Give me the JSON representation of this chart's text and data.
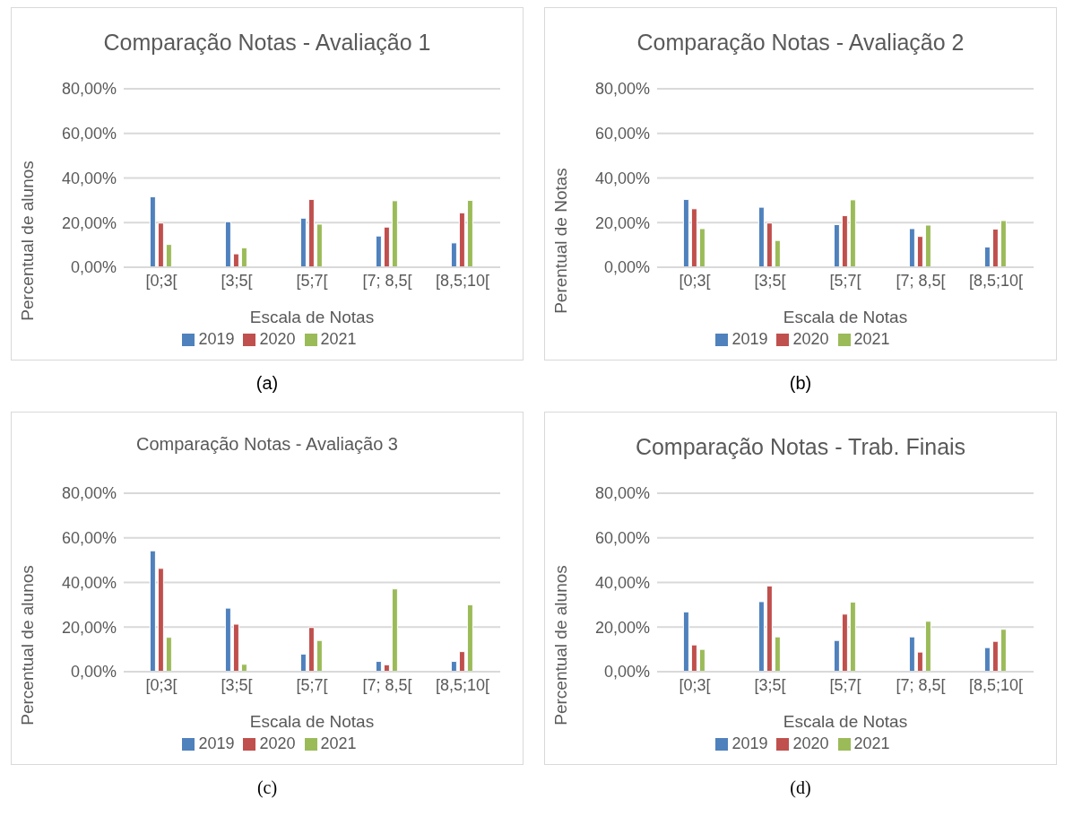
{
  "chart_data": [
    {
      "type": "bar",
      "title": "Comparação Notas - Avaliação 1",
      "xlabel": "Escala de Notas",
      "ylabel": "Percentual de alunos",
      "categories": [
        "[0;3[",
        "[3;5[",
        "[5;7[",
        "[7; 8,5[",
        "[8,5;10["
      ],
      "series": [
        {
          "name": "2019",
          "color": "#4f81bd",
          "values": [
            31.6,
            20.4,
            22,
            14,
            10.9
          ]
        },
        {
          "name": "2020",
          "color": "#c0504d",
          "values": [
            19.8,
            6,
            30.4,
            18,
            24.4
          ]
        },
        {
          "name": "2021",
          "color": "#9bbb59",
          "values": [
            10.2,
            8.7,
            19.3,
            29.8,
            30
          ]
        }
      ],
      "ylim": [
        0,
        80
      ],
      "yticks": [
        {
          "value": 0,
          "label": "0,00%"
        },
        {
          "value": 20,
          "label": "20,00%"
        },
        {
          "value": 40,
          "label": "40,00%"
        },
        {
          "value": 60,
          "label": "60,00%"
        },
        {
          "value": 80,
          "label": "80,00%"
        }
      ],
      "grid": "y",
      "legend": "bottom",
      "annotations": [
        "(a)"
      ]
    },
    {
      "type": "bar",
      "title": "Comparação Notas - Avaliação 2",
      "xlabel": "Escala de Notas",
      "ylabel": "Perentual de Notas",
      "categories": [
        "[0;3[",
        "[3;5[",
        "[5;7[",
        "[7; 8,5[",
        "[8,5;10["
      ],
      "series": [
        {
          "name": "2019",
          "color": "#4f81bd",
          "values": [
            30.4,
            26.9,
            19.1,
            17.3,
            9.1
          ]
        },
        {
          "name": "2020",
          "color": "#c0504d",
          "values": [
            26.2,
            19.8,
            23.1,
            13.8,
            17.1
          ]
        },
        {
          "name": "2021",
          "color": "#9bbb59",
          "values": [
            17.3,
            12,
            30.2,
            18.9,
            20.9
          ]
        }
      ],
      "ylim": [
        0,
        80
      ],
      "yticks": [
        {
          "value": 0,
          "label": "0,00%"
        },
        {
          "value": 20,
          "label": "20,00%"
        },
        {
          "value": 40,
          "label": "40,00%"
        },
        {
          "value": 60,
          "label": "60,00%"
        },
        {
          "value": 80,
          "label": "80,00%"
        }
      ],
      "grid": "y",
      "legend": "bottom",
      "annotations": [
        "(b)"
      ]
    },
    {
      "type": "bar",
      "title": "Comparação Notas - Avaliação 3",
      "xlabel": "Escala de Notas",
      "ylabel": "Percentual de alunos",
      "categories": [
        "[0;3[",
        "[3;5[",
        "[5;7[",
        "[7; 8,5[",
        "[8,5;10["
      ],
      "series": [
        {
          "name": "2019",
          "color": "#4f81bd",
          "values": [
            54.2,
            28.5,
            7.9,
            4.6,
            4.6
          ]
        },
        {
          "name": "2020",
          "color": "#c0504d",
          "values": [
            46.3,
            21.3,
            19.8,
            3.1,
            9
          ]
        },
        {
          "name": "2021",
          "color": "#9bbb59",
          "values": [
            15.4,
            3.3,
            14,
            37.1,
            30
          ]
        }
      ],
      "ylim": [
        0,
        80
      ],
      "yticks": [
        {
          "value": 0,
          "label": "0,00%"
        },
        {
          "value": 20,
          "label": "20,00%"
        },
        {
          "value": 40,
          "label": "40,00%"
        },
        {
          "value": 60,
          "label": "60,00%"
        },
        {
          "value": 80,
          "label": "80,00%"
        }
      ],
      "grid": "y",
      "legend": "bottom",
      "annotations": [
        "(c)"
      ]
    },
    {
      "type": "bar",
      "title": "Comparação Notas - Trab. Finais",
      "xlabel": "Escala de Notas",
      "ylabel": "Percentual de alunos",
      "categories": [
        "[0;3[",
        "[3;5[",
        "[5;7[",
        "[7; 8,5[",
        "[8,5;10["
      ],
      "series": [
        {
          "name": "2019",
          "color": "#4f81bd",
          "values": [
            26.8,
            31.4,
            14,
            15.6,
            10.8
          ]
        },
        {
          "name": "2020",
          "color": "#c0504d",
          "values": [
            12,
            38.4,
            25.8,
            8.8,
            13.6
          ]
        },
        {
          "name": "2021",
          "color": "#9bbb59",
          "values": [
            10,
            15.6,
            31.2,
            22.6,
            19
          ]
        }
      ],
      "ylim": [
        0,
        80
      ],
      "yticks": [
        {
          "value": 0,
          "label": "0,00%"
        },
        {
          "value": 20,
          "label": "20,00%"
        },
        {
          "value": 40,
          "label": "40,00%"
        },
        {
          "value": 60,
          "label": "60,00%"
        },
        {
          "value": 80,
          "label": "80,00%"
        }
      ],
      "grid": "y",
      "legend": "bottom",
      "annotations": [
        "(d)"
      ]
    }
  ]
}
